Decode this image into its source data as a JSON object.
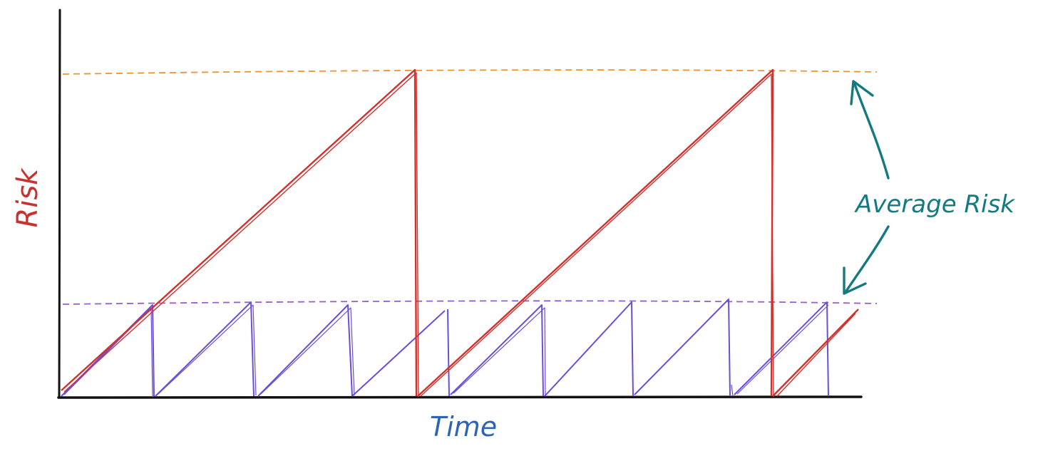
{
  "labels": {
    "y_axis": "Risk",
    "x_axis": "Time",
    "annotation": "Average Risk"
  },
  "colors": {
    "axis": "#111111",
    "high_risk_line": "#d0312d",
    "low_risk_line": "#6a4fd6",
    "high_average_line": "#f0922e",
    "low_average_line": "#9a5cc8",
    "annotation": "#137a7f",
    "y_label": "#c8312d",
    "x_label": "#2f63b3"
  },
  "series": [
    {
      "id": "red-sawtooth",
      "description_color": "red",
      "cycle_count": 2
    },
    {
      "id": "purple-sawtooth",
      "description_color": "purple",
      "cycle_count": 8
    }
  ]
}
